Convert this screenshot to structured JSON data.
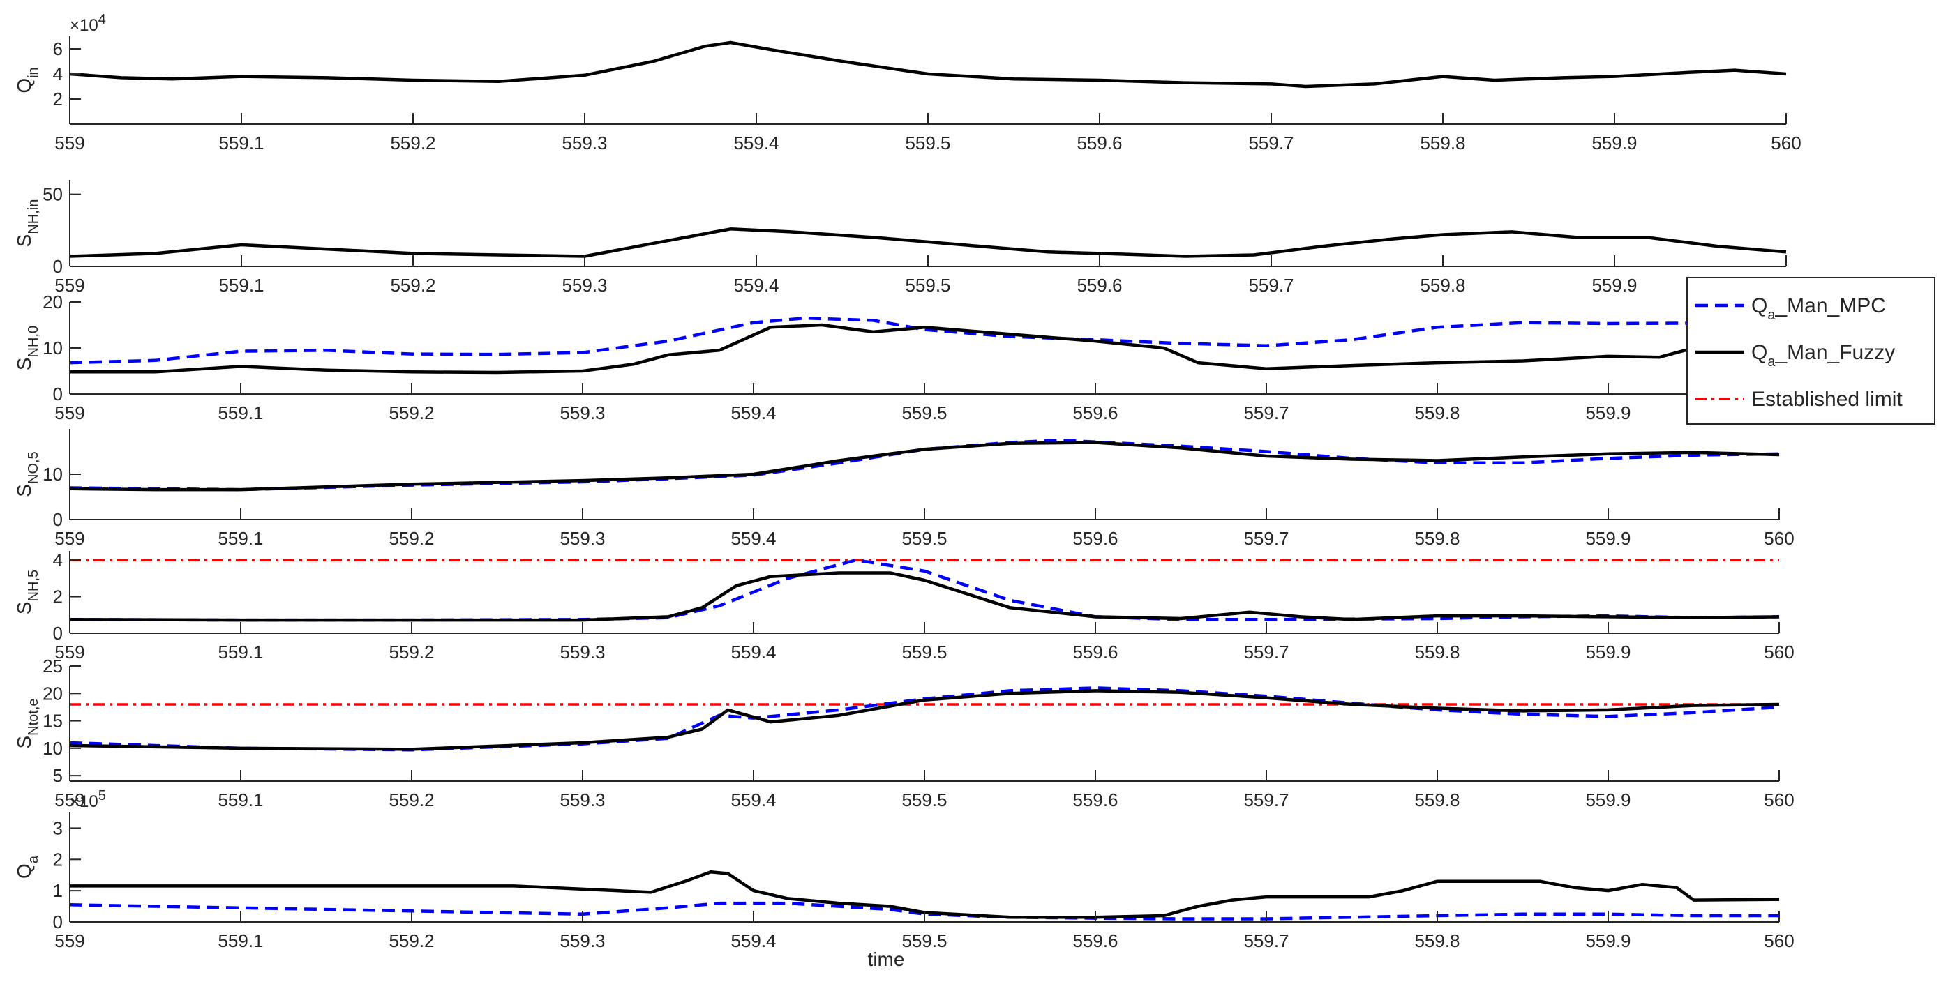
{
  "x_label": "time",
  "colors": {
    "mpc": "#0000ff",
    "fuzzy": "#000000",
    "limit": "#ff0000",
    "axis": "#262626"
  },
  "legend": {
    "entries": [
      {
        "key": "mpc",
        "main": "Q",
        "sub": "a",
        "rest": "_Man_MPC"
      },
      {
        "key": "fuzzy",
        "main": "Q",
        "sub": "a",
        "rest": "_Man_Fuzzy"
      },
      {
        "key": "limit",
        "main": "Established limit",
        "sub": "",
        "rest": ""
      }
    ]
  },
  "chart_data": [
    {
      "type": "line",
      "ylabel": {
        "main": "Q",
        "sub": "in"
      },
      "multiplier": {
        "base": "×10",
        "exp": "4"
      },
      "ylim": [
        0,
        7
      ],
      "yticks": [
        2,
        4,
        6
      ],
      "ytick_labels": [
        "2",
        "4",
        "6"
      ],
      "xlim": [
        559,
        560
      ],
      "xticks": [
        559,
        559.1,
        559.2,
        559.3,
        559.4,
        559.5,
        559.6,
        559.7,
        559.8,
        559.9,
        560
      ],
      "xtick_labels": [
        "559",
        "559.1",
        "559.2",
        "559.3",
        "559.4",
        "559.5",
        "559.6",
        "559.7",
        "559.8",
        "559.9",
        "560"
      ],
      "series": [
        {
          "key": "fuzzy",
          "style": "solid",
          "x": [
            559,
            559.03,
            559.06,
            559.1,
            559.15,
            559.2,
            559.25,
            559.3,
            559.34,
            559.37,
            559.385,
            559.41,
            559.45,
            559.5,
            559.55,
            559.6,
            559.65,
            559.7,
            559.72,
            559.76,
            559.8,
            559.83,
            559.87,
            559.9,
            559.94,
            559.97,
            560
          ],
          "y": [
            4.0,
            3.7,
            3.6,
            3.8,
            3.7,
            3.5,
            3.4,
            3.9,
            5.0,
            6.2,
            6.5,
            5.9,
            5.0,
            4.0,
            3.6,
            3.5,
            3.3,
            3.2,
            3.0,
            3.2,
            3.8,
            3.5,
            3.7,
            3.8,
            4.1,
            4.3,
            4.0
          ]
        }
      ]
    },
    {
      "type": "line",
      "ylabel": {
        "main": "S",
        "sub": "NH,in"
      },
      "multiplier": null,
      "ylim": [
        0,
        60
      ],
      "yticks": [
        0,
        50
      ],
      "ytick_labels": [
        "0",
        "50"
      ],
      "xlim": [
        559,
        560
      ],
      "xticks": [
        559,
        559.1,
        559.2,
        559.3,
        559.4,
        559.5,
        559.6,
        559.7,
        559.8,
        559.9,
        560
      ],
      "xtick_labels": [
        "559",
        "559.1",
        "559.2",
        "559.3",
        "559.4",
        "559.5",
        "559.6",
        "559.7",
        "559.8",
        "559.9",
        "559.9|560"
      ],
      "series": [
        {
          "key": "fuzzy",
          "style": "solid",
          "x": [
            559,
            559.05,
            559.1,
            559.15,
            559.2,
            559.25,
            559.3,
            559.34,
            559.385,
            559.42,
            559.47,
            559.52,
            559.57,
            559.6,
            559.65,
            559.69,
            559.73,
            559.77,
            559.8,
            559.84,
            559.88,
            559.92,
            559.96,
            560
          ],
          "y": [
            7,
            9,
            15,
            12,
            9,
            8,
            7,
            16,
            26,
            24,
            20,
            15,
            10,
            9,
            7,
            8,
            14,
            19,
            22,
            24,
            20,
            20,
            14,
            10
          ]
        }
      ]
    },
    {
      "type": "line",
      "ylabel": {
        "main": "S",
        "sub": "NH,0"
      },
      "multiplier": null,
      "ylim": [
        0,
        20
      ],
      "yticks": [
        0,
        10,
        20
      ],
      "ytick_labels": [
        "0",
        "10",
        "20"
      ],
      "xlim": [
        559,
        560
      ],
      "xticks": [
        559,
        559.1,
        559.2,
        559.3,
        559.4,
        559.5,
        559.6,
        559.7,
        559.8,
        559.9
      ],
      "xtick_labels": [
        "559",
        "559.1",
        "559.2",
        "559.3",
        "559.4",
        "559.5",
        "559.6",
        "559.7",
        "559.8",
        "559.9"
      ],
      "series": [
        {
          "key": "mpc",
          "style": "dashed",
          "x": [
            559,
            559.05,
            559.1,
            559.15,
            559.2,
            559.25,
            559.3,
            559.35,
            559.4,
            559.43,
            559.47,
            559.5,
            559.55,
            559.6,
            559.65,
            559.7,
            559.75,
            559.8,
            559.85,
            559.9,
            559.95,
            560
          ],
          "y": [
            6.8,
            7.3,
            9.3,
            9.5,
            8.7,
            8.6,
            9.0,
            11.5,
            15.5,
            16.5,
            16.0,
            14.0,
            12.5,
            11.8,
            11.0,
            10.5,
            11.8,
            14.5,
            15.5,
            15.3,
            15.4,
            12.8
          ]
        },
        {
          "key": "fuzzy",
          "style": "solid",
          "x": [
            559,
            559.05,
            559.1,
            559.15,
            559.2,
            559.25,
            559.3,
            559.33,
            559.35,
            559.38,
            559.41,
            559.44,
            559.47,
            559.5,
            559.55,
            559.6,
            559.64,
            559.66,
            559.7,
            559.75,
            559.8,
            559.85,
            559.9,
            559.93,
            559.95,
            560
          ],
          "y": [
            4.8,
            4.8,
            6.0,
            5.2,
            4.8,
            4.7,
            5.0,
            6.5,
            8.5,
            9.5,
            14.5,
            15.0,
            13.5,
            14.5,
            13.0,
            11.5,
            10.0,
            6.8,
            5.5,
            6.2,
            6.8,
            7.2,
            8.2,
            8.0,
            10.0,
            8.0
          ]
        }
      ]
    },
    {
      "type": "line",
      "ylabel": {
        "main": "S",
        "sub": "NO,5"
      },
      "multiplier": null,
      "ylim": [
        0,
        20
      ],
      "yticks": [
        0,
        10
      ],
      "ytick_labels": [
        "0",
        "10"
      ],
      "xlim": [
        559,
        560
      ],
      "xticks": [
        559,
        559.1,
        559.2,
        559.3,
        559.4,
        559.5,
        559.6,
        559.7,
        559.8,
        559.9,
        560
      ],
      "xtick_labels": [
        "559",
        "559.1",
        "559.2",
        "559.3",
        "559.4",
        "559.5",
        "559.6",
        "559.7",
        "559.8",
        "559.9",
        "560"
      ],
      "series": [
        {
          "key": "mpc",
          "style": "dashed",
          "x": [
            559,
            559.1,
            559.2,
            559.3,
            559.35,
            559.4,
            559.45,
            559.5,
            559.55,
            559.58,
            559.65,
            559.7,
            559.75,
            559.8,
            559.85,
            559.9,
            559.95,
            560
          ],
          "y": [
            7.0,
            6.6,
            7.6,
            8.3,
            9.0,
            9.8,
            12.5,
            15.5,
            17.0,
            17.5,
            16.2,
            15.0,
            13.5,
            12.5,
            12.5,
            13.5,
            14.2,
            14.5
          ]
        },
        {
          "key": "fuzzy",
          "style": "solid",
          "x": [
            559,
            559.05,
            559.1,
            559.2,
            559.3,
            559.35,
            559.4,
            559.45,
            559.5,
            559.55,
            559.6,
            559.65,
            559.7,
            559.75,
            559.8,
            559.85,
            559.9,
            559.95,
            560
          ],
          "y": [
            6.8,
            6.6,
            6.6,
            7.8,
            8.6,
            9.2,
            10.0,
            13.0,
            15.5,
            16.8,
            17.0,
            15.8,
            14.0,
            13.3,
            13.0,
            13.8,
            14.5,
            14.8,
            14.3
          ]
        }
      ]
    },
    {
      "type": "line",
      "ylabel": {
        "main": "S",
        "sub": "NH,5"
      },
      "multiplier": null,
      "ylim": [
        0,
        4.5
      ],
      "yticks": [
        0,
        2,
        4
      ],
      "ytick_labels": [
        "0",
        "2",
        "4"
      ],
      "xlim": [
        559,
        560
      ],
      "xticks": [
        559,
        559.1,
        559.2,
        559.3,
        559.4,
        559.5,
        559.6,
        559.7,
        559.8,
        559.9,
        560
      ],
      "xtick_labels": [
        "559",
        "559.1",
        "559.2",
        "559.3",
        "559.4",
        "559.5",
        "559.6",
        "559.7",
        "559.8",
        "559.9",
        "560"
      ],
      "series": [
        {
          "key": "limit",
          "style": "dashdot",
          "x": [
            559,
            560
          ],
          "y": [
            4.0,
            4.0
          ]
        },
        {
          "key": "mpc",
          "style": "dashed",
          "x": [
            559,
            559.1,
            559.2,
            559.3,
            559.35,
            559.38,
            559.42,
            559.46,
            559.5,
            559.55,
            559.6,
            559.65,
            559.7,
            559.8,
            559.85,
            559.9,
            559.95,
            560
          ],
          "y": [
            0.75,
            0.72,
            0.72,
            0.75,
            0.85,
            1.5,
            3.0,
            4.0,
            3.4,
            1.8,
            0.9,
            0.75,
            0.75,
            0.8,
            0.9,
            0.95,
            0.85,
            0.9
          ]
        },
        {
          "key": "fuzzy",
          "style": "solid",
          "x": [
            559,
            559.1,
            559.2,
            559.3,
            559.35,
            559.37,
            559.39,
            559.41,
            559.45,
            559.48,
            559.5,
            559.55,
            559.6,
            559.65,
            559.69,
            559.72,
            559.75,
            559.8,
            559.85,
            559.9,
            559.95,
            560
          ],
          "y": [
            0.75,
            0.72,
            0.72,
            0.72,
            0.9,
            1.4,
            2.6,
            3.1,
            3.3,
            3.3,
            2.9,
            1.4,
            0.9,
            0.8,
            1.15,
            0.9,
            0.75,
            0.95,
            0.95,
            0.9,
            0.85,
            0.9
          ]
        }
      ]
    },
    {
      "type": "line",
      "ylabel": {
        "main": "S",
        "sub": "Ntot,e"
      },
      "multiplier": null,
      "ylim": [
        4,
        25
      ],
      "yticks": [
        5,
        10,
        15,
        20,
        25
      ],
      "ytick_labels": [
        "5",
        "10",
        "15",
        "20",
        "25"
      ],
      "xlim": [
        559,
        560
      ],
      "xticks": [
        559,
        559.1,
        559.2,
        559.3,
        559.4,
        559.5,
        559.6,
        559.7,
        559.8,
        559.9,
        560
      ],
      "xtick_labels": [
        "559",
        "559.1",
        "559.2",
        "559.3",
        "559.4",
        "559.5",
        "559.6",
        "559.7",
        "559.8",
        "559.9",
        "560"
      ],
      "series": [
        {
          "key": "limit",
          "style": "dashdot",
          "x": [
            559,
            560
          ],
          "y": [
            18,
            18
          ]
        },
        {
          "key": "mpc",
          "style": "dashed",
          "x": [
            559,
            559.1,
            559.2,
            559.3,
            559.35,
            559.38,
            559.4,
            559.45,
            559.5,
            559.55,
            559.6,
            559.65,
            559.7,
            559.75,
            559.8,
            559.85,
            559.9,
            559.95,
            560
          ],
          "y": [
            11.0,
            10.0,
            9.7,
            10.8,
            11.8,
            16.0,
            15.5,
            17.0,
            19.0,
            20.5,
            21.0,
            20.5,
            19.5,
            18.2,
            17.0,
            16.2,
            15.8,
            16.5,
            17.5
          ]
        },
        {
          "key": "fuzzy",
          "style": "solid",
          "x": [
            559,
            559.1,
            559.2,
            559.3,
            559.35,
            559.37,
            559.385,
            559.41,
            559.45,
            559.5,
            559.55,
            559.6,
            559.65,
            559.7,
            559.75,
            559.8,
            559.85,
            559.9,
            559.95,
            560
          ],
          "y": [
            10.5,
            10.0,
            9.8,
            11.0,
            12.0,
            13.5,
            17.0,
            14.8,
            16.0,
            18.8,
            20.0,
            20.5,
            20.2,
            19.2,
            18.0,
            17.3,
            16.8,
            17.0,
            17.8,
            18.0
          ]
        }
      ]
    },
    {
      "type": "line",
      "ylabel": {
        "main": "Q",
        "sub": "a"
      },
      "multiplier": {
        "base": "×10",
        "exp": "5"
      },
      "ylim": [
        0,
        3.5
      ],
      "yticks": [
        0,
        1,
        2,
        3
      ],
      "ytick_labels": [
        "0",
        "1",
        "2",
        "3"
      ],
      "xlim": [
        559,
        560
      ],
      "xticks": [
        559,
        559.1,
        559.2,
        559.3,
        559.4,
        559.5,
        559.6,
        559.7,
        559.8,
        559.9,
        560
      ],
      "xtick_labels": [
        "559",
        "559.1",
        "559.2",
        "559.3",
        "559.4",
        "559.5",
        "559.6",
        "559.7",
        "559.8",
        "559.9",
        "560"
      ],
      "series": [
        {
          "key": "mpc",
          "style": "dashed",
          "x": [
            559,
            559.1,
            559.2,
            559.3,
            559.35,
            559.38,
            559.42,
            559.48,
            559.5,
            559.55,
            559.6,
            559.65,
            559.7,
            559.8,
            559.85,
            559.9,
            559.95,
            560
          ],
          "y": [
            0.55,
            0.45,
            0.35,
            0.25,
            0.45,
            0.6,
            0.6,
            0.4,
            0.25,
            0.15,
            0.12,
            0.1,
            0.1,
            0.2,
            0.25,
            0.25,
            0.2,
            0.2
          ]
        },
        {
          "key": "fuzzy",
          "style": "solid",
          "x": [
            559,
            559.1,
            559.2,
            559.26,
            559.3,
            559.34,
            559.36,
            559.375,
            559.385,
            559.4,
            559.42,
            559.45,
            559.48,
            559.5,
            559.55,
            559.6,
            559.64,
            559.66,
            559.68,
            559.7,
            559.76,
            559.78,
            559.8,
            559.82,
            559.86,
            559.88,
            559.9,
            559.92,
            559.94,
            559.95,
            560
          ],
          "y": [
            1.15,
            1.15,
            1.15,
            1.15,
            1.05,
            0.95,
            1.3,
            1.6,
            1.55,
            1.0,
            0.75,
            0.6,
            0.5,
            0.3,
            0.15,
            0.15,
            0.2,
            0.5,
            0.7,
            0.8,
            0.8,
            1.0,
            1.3,
            1.3,
            1.3,
            1.1,
            1.0,
            1.2,
            1.1,
            0.7,
            0.72
          ]
        }
      ]
    }
  ]
}
